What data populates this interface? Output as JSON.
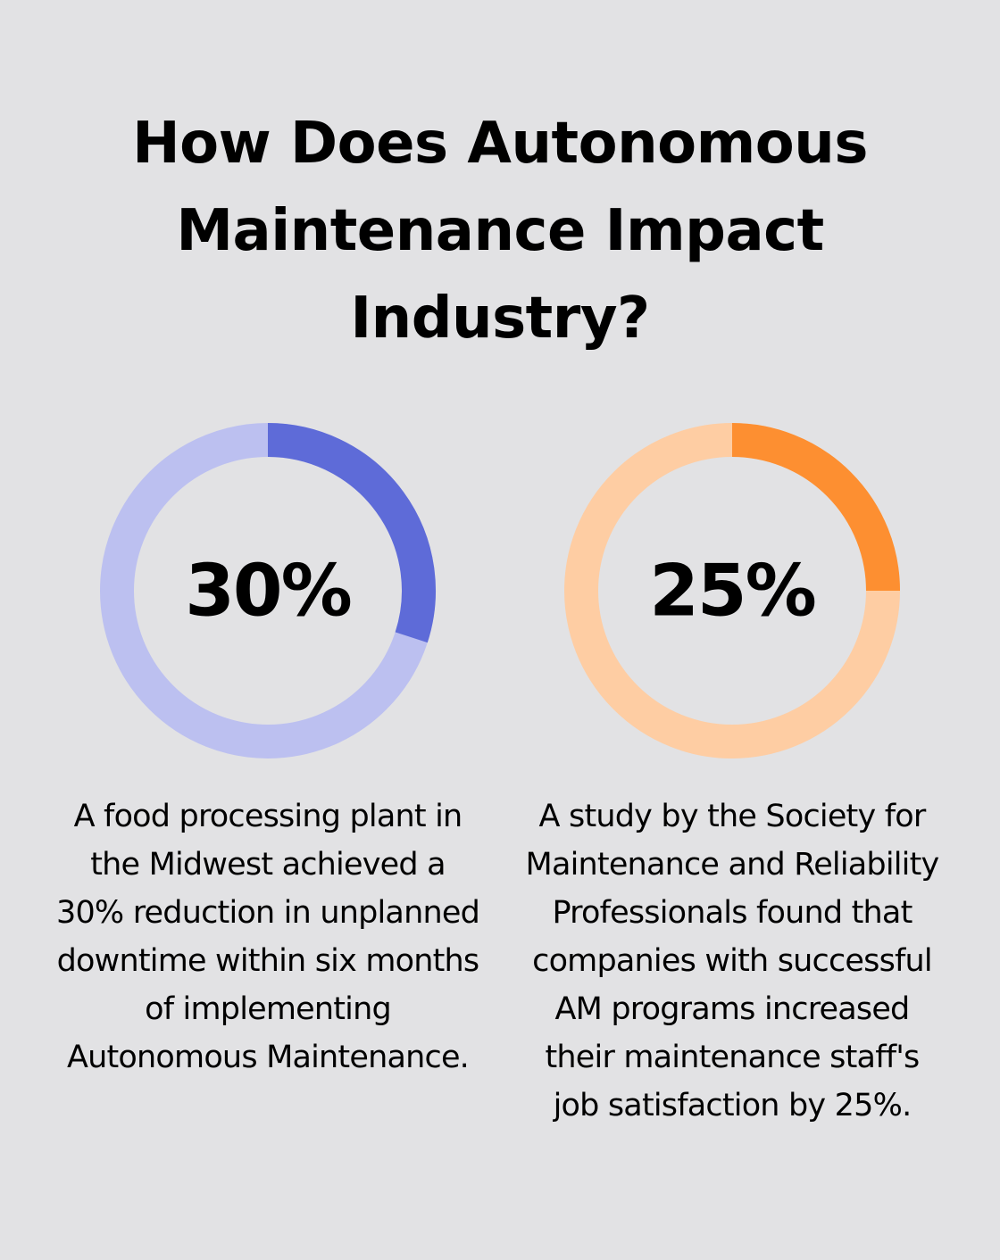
{
  "title": "How Does Autonomous Maintenance Impact Industry?",
  "chart_data": [
    {
      "type": "pie",
      "variant": "donut",
      "value": 30,
      "max": 100,
      "label": "30%",
      "colors": {
        "fill": "#5e6bd8",
        "track": "#bcc0f0"
      },
      "description": "A food processing plant in the Midwest achieved a 30% reduction in unplanned downtime within six months of implementing Autonomous Maintenance."
    },
    {
      "type": "pie",
      "variant": "donut",
      "value": 25,
      "max": 100,
      "label": "25%",
      "colors": {
        "fill": "#fd8f31",
        "track": "#fecda3"
      },
      "description": "A study by the Society for Maintenance and Reliability Professionals found that companies with successful AM programs increased their maintenance staff's job satisfaction by 25%."
    }
  ]
}
